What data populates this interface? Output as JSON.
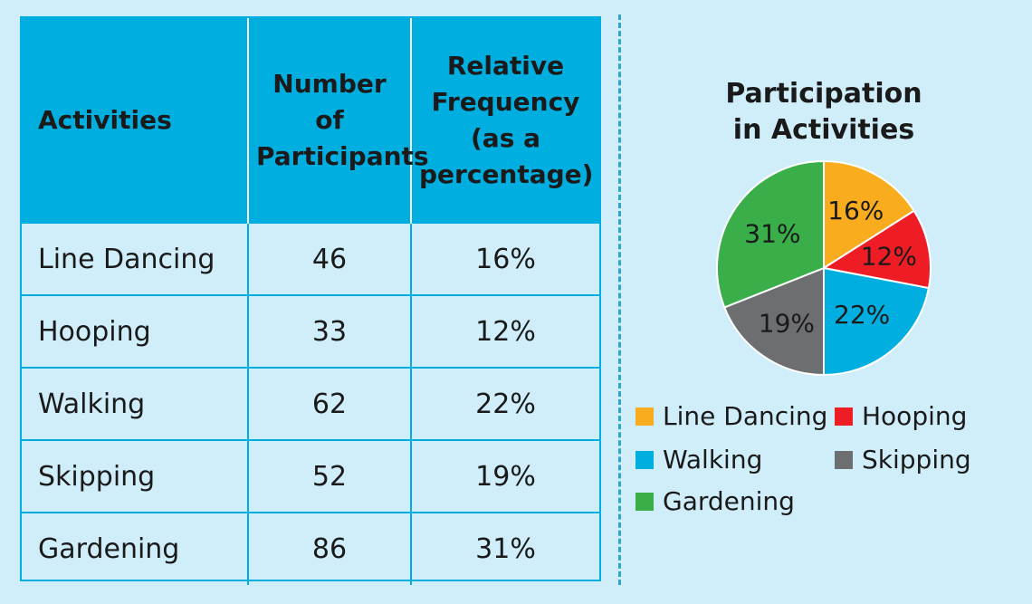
{
  "table": {
    "headers": [
      "Activities",
      "Number\nof\nParticipants",
      "Relative\nFrequency\n(as a\npercentage)"
    ],
    "rows": [
      {
        "activity": "Line Dancing",
        "participants": "46",
        "frequency": "16%"
      },
      {
        "activity": "Hooping",
        "participants": "33",
        "frequency": "12%"
      },
      {
        "activity": "Walking",
        "participants": "62",
        "frequency": "22%"
      },
      {
        "activity": "Skipping",
        "participants": "52",
        "frequency": "19%"
      },
      {
        "activity": "Gardening",
        "participants": "86",
        "frequency": "31%"
      }
    ]
  },
  "chart_data": {
    "type": "pie",
    "title": "Participation\nin Activities",
    "categories": [
      "Line Dancing",
      "Hooping",
      "Walking",
      "Skipping",
      "Gardening"
    ],
    "values": [
      16,
      12,
      22,
      19,
      31
    ],
    "labels": [
      "16%",
      "12%",
      "22%",
      "19%",
      "31%"
    ],
    "colors": [
      "#f9ac1d",
      "#ee1d25",
      "#00aee0",
      "#6d6e70",
      "#3aaf49"
    ],
    "start": "12 o'clock, clockwise",
    "legend": "bottom"
  }
}
